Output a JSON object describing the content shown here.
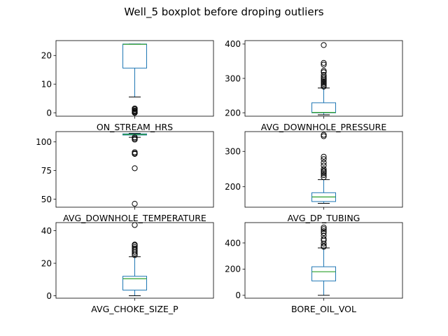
{
  "chart_data": {
    "title": "Well_5 boxplot before droping outliers",
    "type": "boxplot",
    "colors": {
      "box": "#1f77b4",
      "median": "#2ca02c",
      "flier": "#000000",
      "axes": "#000000"
    },
    "subplots": [
      {
        "label": "ON_STREAM_HRS",
        "ylim": [
          -1.2,
          25.2
        ],
        "yticks": [
          0,
          10,
          20
        ],
        "box": {
          "whisker_low": 5.5,
          "q1": 15.6,
          "median": 23.9,
          "q3": 24,
          "whisker_high": 24
        },
        "outliers": [
          0,
          0,
          0,
          0.2,
          0.5,
          0.8,
          1.2,
          1.5
        ]
      },
      {
        "label": "AVG_DOWNHOLE_PRESSURE",
        "ylim": [
          190,
          410
        ],
        "yticks": [
          200,
          300,
          400
        ],
        "box": {
          "whisker_low": 194,
          "q1": 200,
          "median": 201,
          "q3": 229,
          "whisker_high": 272
        },
        "outliers": [
          276,
          280,
          284,
          288,
          292,
          296,
          300,
          304,
          310,
          318,
          322,
          340,
          345,
          397
        ]
      },
      {
        "label": "AVG_DOWNHOLE_TEMPERATURE",
        "ylim": [
          43,
          109
        ],
        "yticks": [
          50,
          75,
          100
        ],
        "box": {
          "whisker_low": 104,
          "q1": 106,
          "median": 106.5,
          "q3": 107,
          "whisker_high": 107.5
        },
        "outliers": [
          102,
          103,
          104,
          91,
          90,
          89.5,
          77,
          46
        ]
      },
      {
        "label": "AVG_DP_TUBING",
        "ylim": [
          142,
          356
        ],
        "yticks": [
          200,
          300
        ],
        "box": {
          "whisker_low": 153,
          "q1": 158,
          "median": 171,
          "q3": 183,
          "whisker_high": 220
        },
        "outliers": [
          227,
          233,
          238,
          242,
          245,
          250,
          260,
          268,
          278,
          285,
          343,
          347
        ]
      },
      {
        "label": "AVG_CHOKE_SIZE_P",
        "ylim": [
          -1.5,
          45
        ],
        "yticks": [
          0,
          20,
          40
        ],
        "box": {
          "whisker_low": 0,
          "q1": 3.5,
          "median": 10.5,
          "q3": 12,
          "whisker_high": 24
        },
        "outliers": [
          25,
          26,
          27,
          28,
          29,
          30,
          31,
          31.5,
          43.5
        ]
      },
      {
        "label": "BORE_OIL_VOL",
        "ylim": [
          -22,
          555
        ],
        "yticks": [
          0,
          200,
          400
        ],
        "box": {
          "whisker_low": 0,
          "q1": 110,
          "median": 180,
          "q3": 218,
          "whisker_high": 362
        },
        "outliers": [
          370,
          378,
          395,
          418,
          430,
          455,
          475,
          490,
          505,
          518
        ]
      }
    ]
  }
}
